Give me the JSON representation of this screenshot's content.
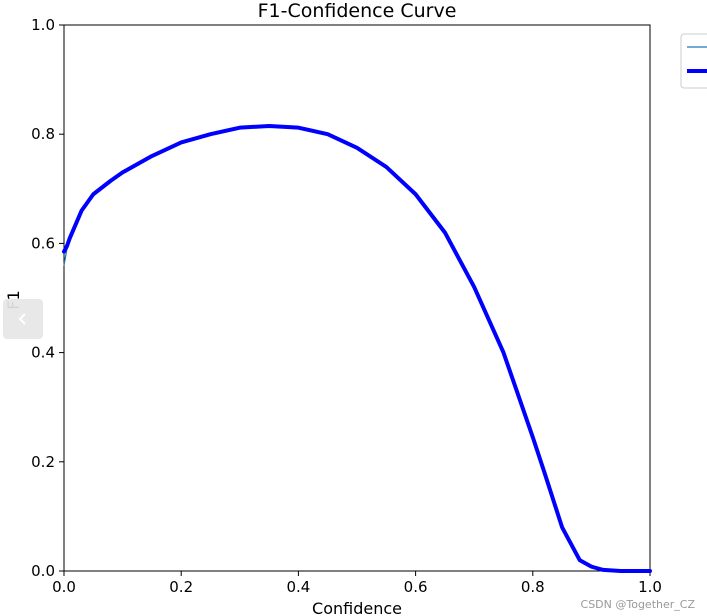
{
  "chart_data": {
    "type": "line",
    "title": "F1-Confidence Curve",
    "xlabel": "Confidence",
    "ylabel": "F1",
    "xlim": [
      0.0,
      1.0
    ],
    "ylim": [
      0.0,
      1.0
    ],
    "xticks": [
      "0.0",
      "0.2",
      "0.4",
      "0.6",
      "0.8",
      "1.0"
    ],
    "yticks": [
      "0.0",
      "0.2",
      "0.4",
      "0.6",
      "0.8",
      "1.0"
    ],
    "grid": false,
    "legend_position": "outside-top-right",
    "series": [
      {
        "color": "#1f77b4",
        "line_width": "thin",
        "x": [
          0.0,
          0.005,
          0.01,
          0.02,
          0.03,
          0.05,
          0.08,
          0.1,
          0.15,
          0.2,
          0.25,
          0.3,
          0.35,
          0.4,
          0.45,
          0.5,
          0.55,
          0.6,
          0.65,
          0.7,
          0.75,
          0.8,
          0.82,
          0.85,
          0.88,
          0.9,
          0.92,
          0.95,
          1.0
        ],
        "y": [
          0.56,
          0.59,
          0.605,
          0.635,
          0.66,
          0.69,
          0.715,
          0.73,
          0.76,
          0.785,
          0.8,
          0.81,
          0.815,
          0.812,
          0.8,
          0.775,
          0.74,
          0.69,
          0.62,
          0.52,
          0.4,
          0.245,
          0.18,
          0.08,
          0.02,
          0.008,
          0.002,
          0.0,
          0.0
        ]
      },
      {
        "color": "#0000ff",
        "line_width": "thick",
        "x": [
          0.0,
          0.005,
          0.01,
          0.02,
          0.03,
          0.05,
          0.08,
          0.1,
          0.15,
          0.2,
          0.25,
          0.3,
          0.35,
          0.4,
          0.45,
          0.5,
          0.55,
          0.6,
          0.65,
          0.7,
          0.75,
          0.8,
          0.82,
          0.85,
          0.88,
          0.9,
          0.92,
          0.95,
          1.0
        ],
        "y": [
          0.585,
          0.595,
          0.61,
          0.635,
          0.66,
          0.69,
          0.715,
          0.73,
          0.76,
          0.785,
          0.8,
          0.812,
          0.815,
          0.812,
          0.8,
          0.775,
          0.74,
          0.69,
          0.62,
          0.52,
          0.4,
          0.245,
          0.18,
          0.08,
          0.02,
          0.008,
          0.002,
          0.0,
          0.0
        ]
      }
    ]
  },
  "watermark": "CSDN @Together_CZ",
  "nav": {
    "icon": "chevron-left-icon"
  }
}
